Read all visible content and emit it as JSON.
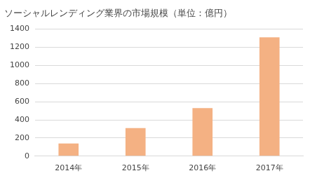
{
  "chart_data": {
    "type": "bar",
    "title": "ソーシャルレンディング業界の市場規模（単位：億円）",
    "categories": [
      "2014年",
      "2015年",
      "2016年",
      "2017年"
    ],
    "values": [
      140,
      310,
      530,
      1310
    ],
    "color": "#f4b183",
    "ylim": [
      0,
      1400
    ],
    "yticks": [
      0,
      200,
      400,
      600,
      800,
      1000,
      1200,
      1400
    ],
    "grid": true
  }
}
